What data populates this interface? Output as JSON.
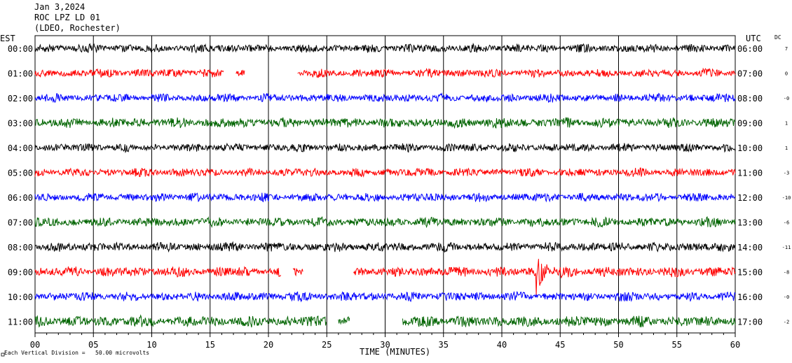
{
  "header": {
    "date": "Jan 3,2024",
    "station": "ROC LPZ LD 01",
    "network": "(LDEO, Rochester)"
  },
  "labels": {
    "left_tz": "EST",
    "right_tz": "UTC",
    "dc": "DC",
    "x_title": "TIME (MINUTES)",
    "footer": "Each Vertical Division =   50.00 microvolts"
  },
  "colors": {
    "cycle": [
      "#000000",
      "#ff0000",
      "#0000ff",
      "#006400"
    ],
    "grid": "#000000",
    "frame": "#000000"
  },
  "chart_data": {
    "type": "line",
    "title": "ROC LPZ LD 01",
    "xlabel": "TIME (MINUTES)",
    "xlim": [
      0,
      60
    ],
    "x_ticks": [
      "00",
      "05",
      "10",
      "15",
      "20",
      "25",
      "30",
      "35",
      "40",
      "45",
      "50",
      "55",
      "60"
    ],
    "grid": "vertical every 5 minutes",
    "series": [
      {
        "name": "00:00",
        "utc": "06:00",
        "dc": "7",
        "amp": 1.0,
        "gaps": []
      },
      {
        "name": "01:00",
        "utc": "07:00",
        "dc": "0",
        "amp": 1.0,
        "gaps": [
          [
            16.2,
            17.2
          ],
          [
            18.0,
            22.5
          ]
        ]
      },
      {
        "name": "02:00",
        "utc": "08:00",
        "dc": "-0",
        "amp": 1.0,
        "gaps": []
      },
      {
        "name": "03:00",
        "utc": "09:00",
        "dc": "1",
        "amp": 1.2,
        "gaps": []
      },
      {
        "name": "04:00",
        "utc": "10:00",
        "dc": "1",
        "amp": 1.0,
        "gaps": []
      },
      {
        "name": "05:00",
        "utc": "11:00",
        "dc": "-3",
        "amp": 1.0,
        "gaps": []
      },
      {
        "name": "06:00",
        "utc": "12:00",
        "dc": "-10",
        "amp": 1.0,
        "gaps": []
      },
      {
        "name": "07:00",
        "utc": "13:00",
        "dc": "-6",
        "amp": 1.1,
        "gaps": []
      },
      {
        "name": "08:00",
        "utc": "14:00",
        "dc": "-11",
        "amp": 1.1,
        "gaps": []
      },
      {
        "name": "09:00",
        "utc": "15:00",
        "dc": "-8",
        "amp": 1.2,
        "gaps": [
          [
            21.1,
            22.1
          ],
          [
            23.0,
            27.3
          ]
        ],
        "event": [
          42.9,
          43.1
        ]
      },
      {
        "name": "10:00",
        "utc": "16:00",
        "dc": "-0",
        "amp": 1.1,
        "gaps": []
      },
      {
        "name": "11:00",
        "utc": "17:00",
        "dc": "-2",
        "amp": 1.3,
        "gaps": [
          [
            25.0,
            26.0
          ],
          [
            27.0,
            31.5
          ]
        ]
      }
    ]
  }
}
